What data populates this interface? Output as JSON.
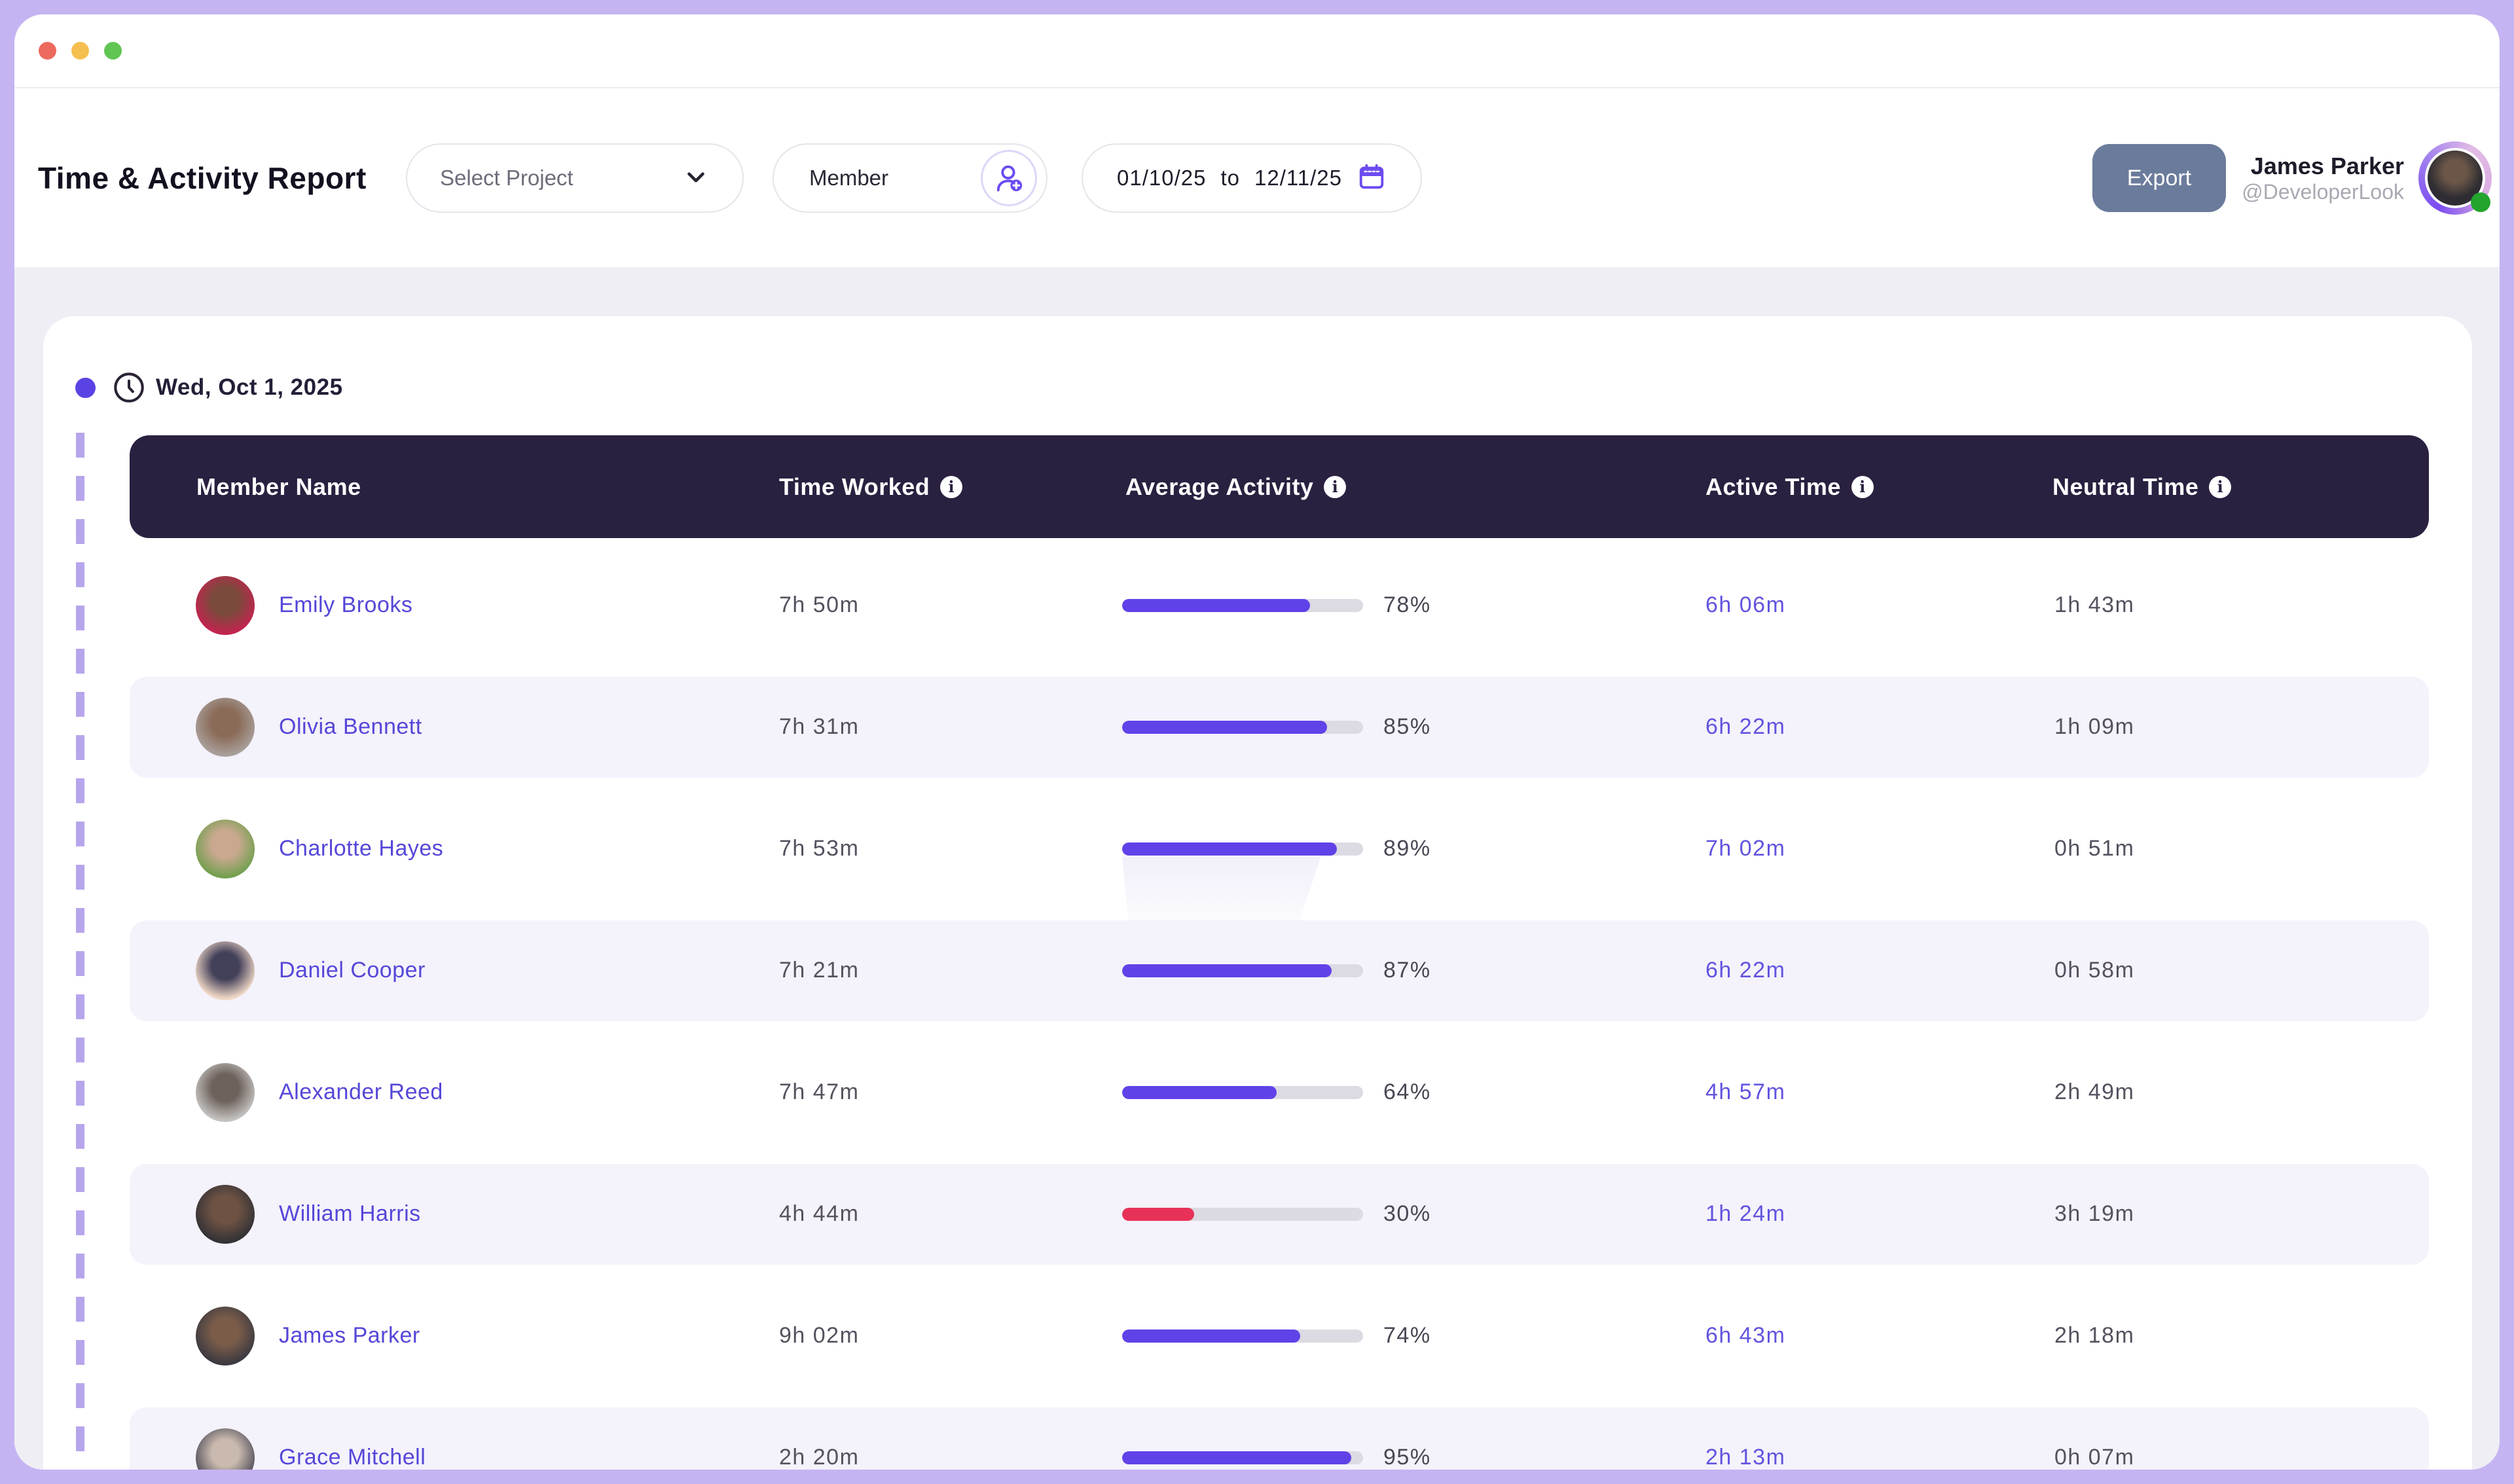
{
  "window": {
    "traffic_lights": [
      "#ED6A5E",
      "#F5BF4F",
      "#61C554"
    ]
  },
  "header": {
    "title": "Time & Activity Report",
    "project_select": {
      "label": "Select Project"
    },
    "member_filter": {
      "label": "Member"
    },
    "date_range": {
      "start": "01/10/25",
      "connector": "to",
      "end": "12/11/25"
    },
    "export_label": "Export",
    "user": {
      "name": "James Parker",
      "handle": "@DeveloperLook"
    }
  },
  "report": {
    "date_label": "Wed, Oct 1, 2025",
    "columns": [
      {
        "label": "Member Name",
        "info": false
      },
      {
        "label": "Time Worked",
        "info": true
      },
      {
        "label": "Average Activity",
        "info": true
      },
      {
        "label": "Active Time",
        "info": true
      },
      {
        "label": "Neutral Time",
        "info": true
      }
    ],
    "rows": [
      {
        "name": "Emily Brooks",
        "time_worked": "7h 50m",
        "activity_pct": 78,
        "active_time": "6h 06m",
        "neutral_time": "1h 43m",
        "bar": "purple",
        "avatar": [
          "#C2254F",
          "#7A4A3C"
        ]
      },
      {
        "name": "Olivia Bennett",
        "time_worked": "7h 31m",
        "activity_pct": 85,
        "active_time": "6h 22m",
        "neutral_time": "1h 09m",
        "bar": "purple",
        "avatar": [
          "#A99F9A",
          "#8A6B58"
        ]
      },
      {
        "name": "Charlotte Hayes",
        "time_worked": "7h 53m",
        "activity_pct": 89,
        "active_time": "7h 02m",
        "neutral_time": "0h 51m",
        "bar": "purple",
        "avatar": [
          "#74A04F",
          "#C9A88F"
        ]
      },
      {
        "name": "Daniel Cooper",
        "time_worked": "7h 21m",
        "activity_pct": 87,
        "active_time": "6h 22m",
        "neutral_time": "0h 58m",
        "bar": "purple",
        "avatar": [
          "#F0D8C6",
          "#43405A"
        ]
      },
      {
        "name": "Alexander Reed",
        "time_worked": "7h 47m",
        "activity_pct": 64,
        "active_time": "4h 57m",
        "neutral_time": "2h 49m",
        "bar": "purple",
        "avatar": [
          "#C4C2C0",
          "#6E625C"
        ]
      },
      {
        "name": "William Harris",
        "time_worked": "4h 44m",
        "activity_pct": 30,
        "active_time": "1h 24m",
        "neutral_time": "3h 19m",
        "bar": "pink",
        "avatar": [
          "#333236",
          "#6E5243"
        ]
      },
      {
        "name": "James Parker",
        "time_worked": "9h 02m",
        "activity_pct": 74,
        "active_time": "6h 43m",
        "neutral_time": "2h 18m",
        "bar": "purple",
        "avatar": [
          "#3C3A41",
          "#7A5C49"
        ]
      },
      {
        "name": "Grace Mitchell",
        "time_worked": "2h 20m",
        "activity_pct": 95,
        "active_time": "2h 13m",
        "neutral_time": "0h 07m",
        "bar": "purple",
        "avatar": [
          "#55525C",
          "#C9B9AE"
        ]
      }
    ]
  },
  "colors": {
    "frame": "#C5B4F2",
    "page_bg": "#EFEEF5",
    "thead_bg": "#2A2040",
    "band_bg": "#F4F2FB",
    "accent_purple": "#6142E8",
    "bar_pink": "#E83158",
    "name_indigo": "#5547D8",
    "active_indigo": "#6254DF",
    "export_bg": "#6B7B9B",
    "status_green": "#23A42D"
  }
}
